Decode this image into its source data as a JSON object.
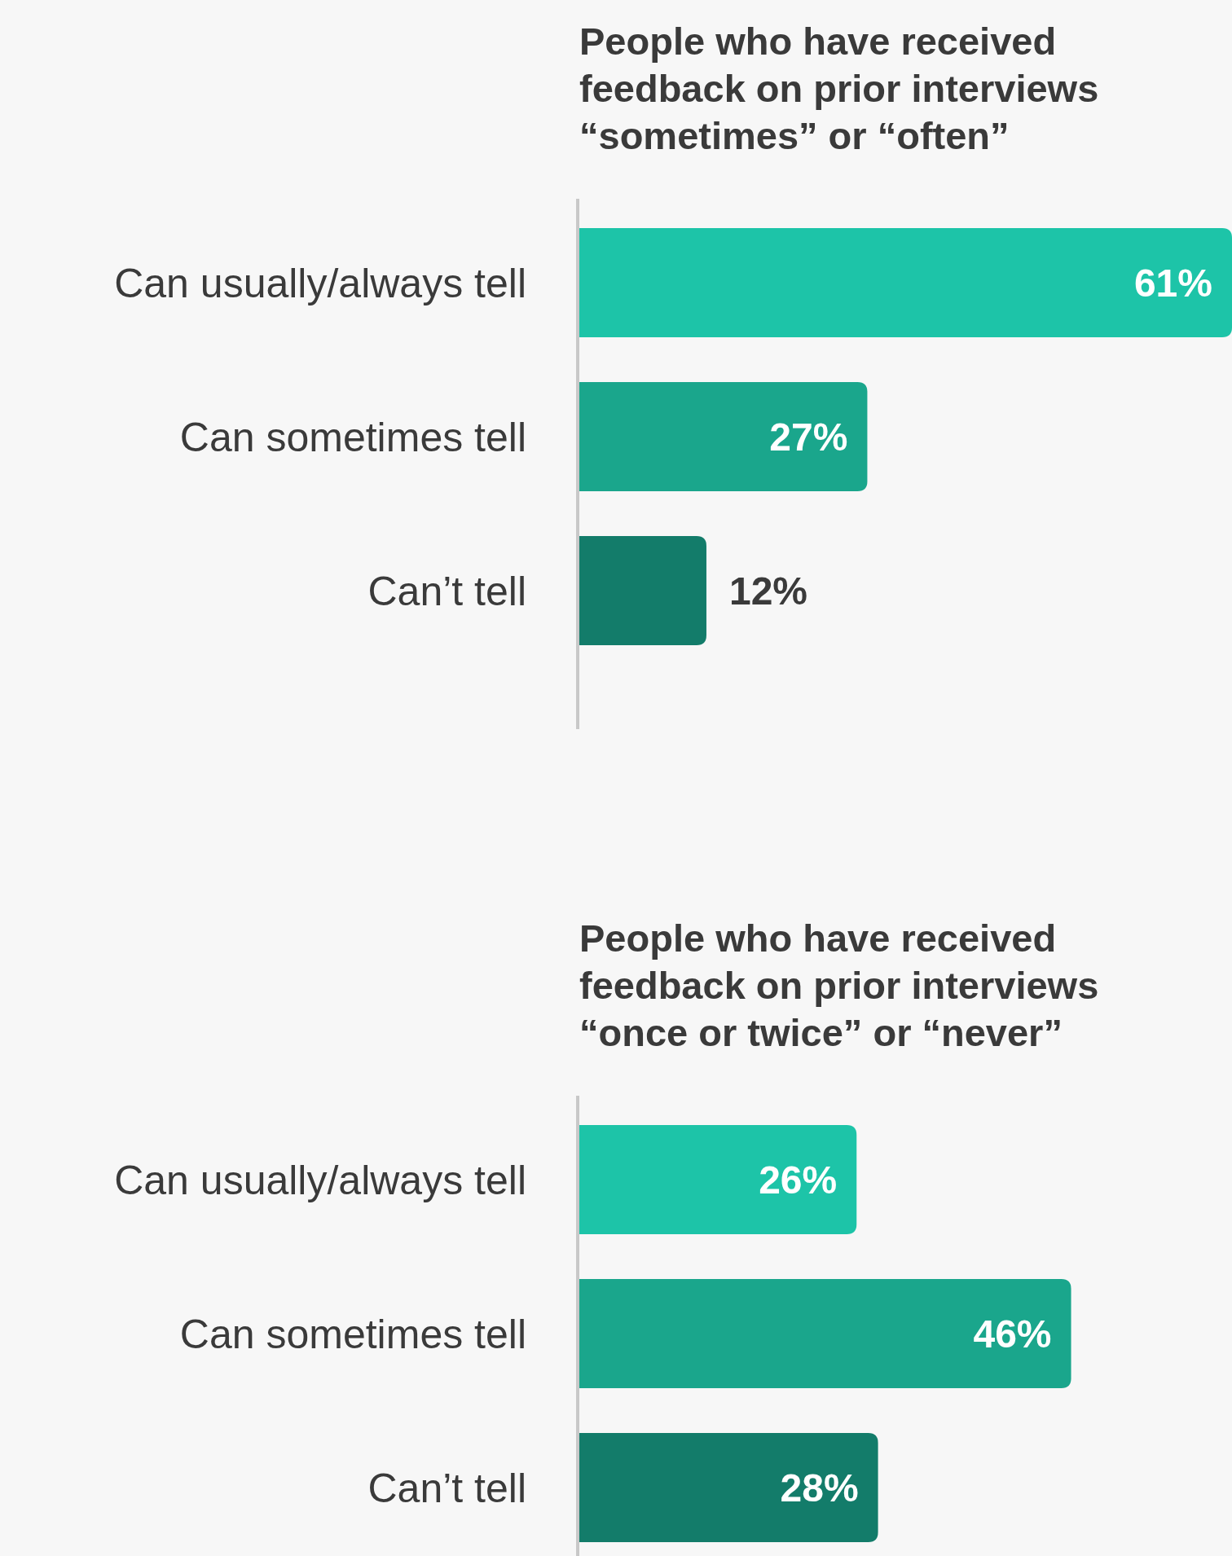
{
  "chart_data": [
    {
      "type": "bar",
      "orientation": "horizontal",
      "title": "People who have received feedback on prior interviews “sometimes” or “often”",
      "categories": [
        "Can usually/always tell",
        "Can sometimes tell",
        "Can’t tell"
      ],
      "values": [
        61,
        27,
        12
      ],
      "colors": [
        "#1dc4a8",
        "#1aa68c",
        "#137c6a"
      ],
      "value_labels": [
        "61%",
        "27%",
        "12%"
      ]
    },
    {
      "type": "bar",
      "orientation": "horizontal",
      "title": "People who have received feedback on prior interviews “once or twice” or “never”",
      "categories": [
        "Can usually/always tell",
        "Can sometimes tell",
        "Can’t tell"
      ],
      "values": [
        26,
        46,
        28
      ],
      "colors": [
        "#1dc4a8",
        "#1aa68c",
        "#137c6a"
      ],
      "value_labels": [
        "26%",
        "46%",
        "28%"
      ]
    }
  ]
}
